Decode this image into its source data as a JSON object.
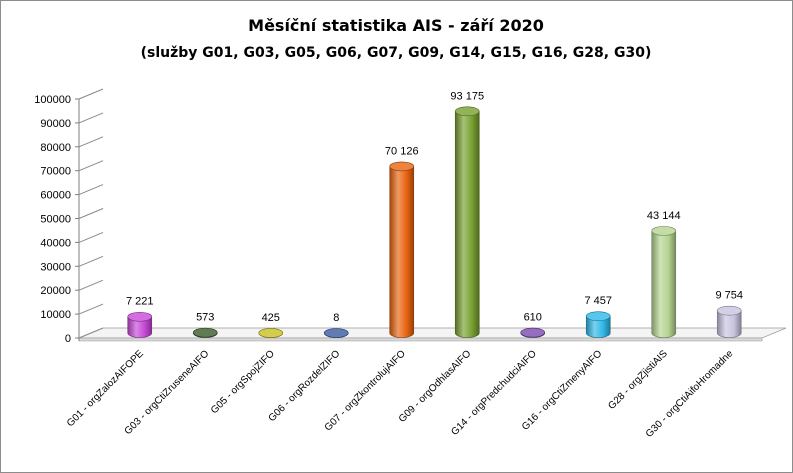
{
  "chart_data": {
    "type": "bar",
    "title": "Měsíční statistika AIS -  září 2020",
    "subtitle": "(služby G01, G03, G05, G06, G07, G09, G14, G15, G16, G28, G30)",
    "ylim": [
      0,
      100000
    ],
    "yticks": [
      "0",
      "10000",
      "20000",
      "30000",
      "40000",
      "50000",
      "60000",
      "70000",
      "80000",
      "90000",
      "100000"
    ],
    "categories": [
      "G01 - orgZalozAIFOPE",
      "G03 - orgCtiZruseneAIFO",
      "G05 - orgSpojZIFO",
      "G06 - orgRozdelZIFO",
      "G07 - orgZkontrolujAIFO",
      "G09 - orgOdhlasAIFO",
      "G14 - orgPredchudciAIFO",
      "G16 - orgCtiZmenyAIFO",
      "G28 - orgZjistiAIS",
      "G30 - orgCtiAifoHromadne"
    ],
    "values": [
      7221,
      573,
      425,
      8,
      70126,
      93175,
      610,
      7457,
      43144,
      9754
    ],
    "value_labels": [
      "7 221",
      "573",
      "425",
      "8",
      "70 126",
      "93 175",
      "610",
      "7 457",
      "43 144",
      "9 754"
    ],
    "colors": [
      "#c848d8",
      "#3a5a2a",
      "#c8c020",
      "#3a5aa0",
      "#e86410",
      "#78a030",
      "#7a4ab0",
      "#30b8e8",
      "#b4d490",
      "#c8c4e0"
    ],
    "grid": false,
    "legend": "none"
  }
}
